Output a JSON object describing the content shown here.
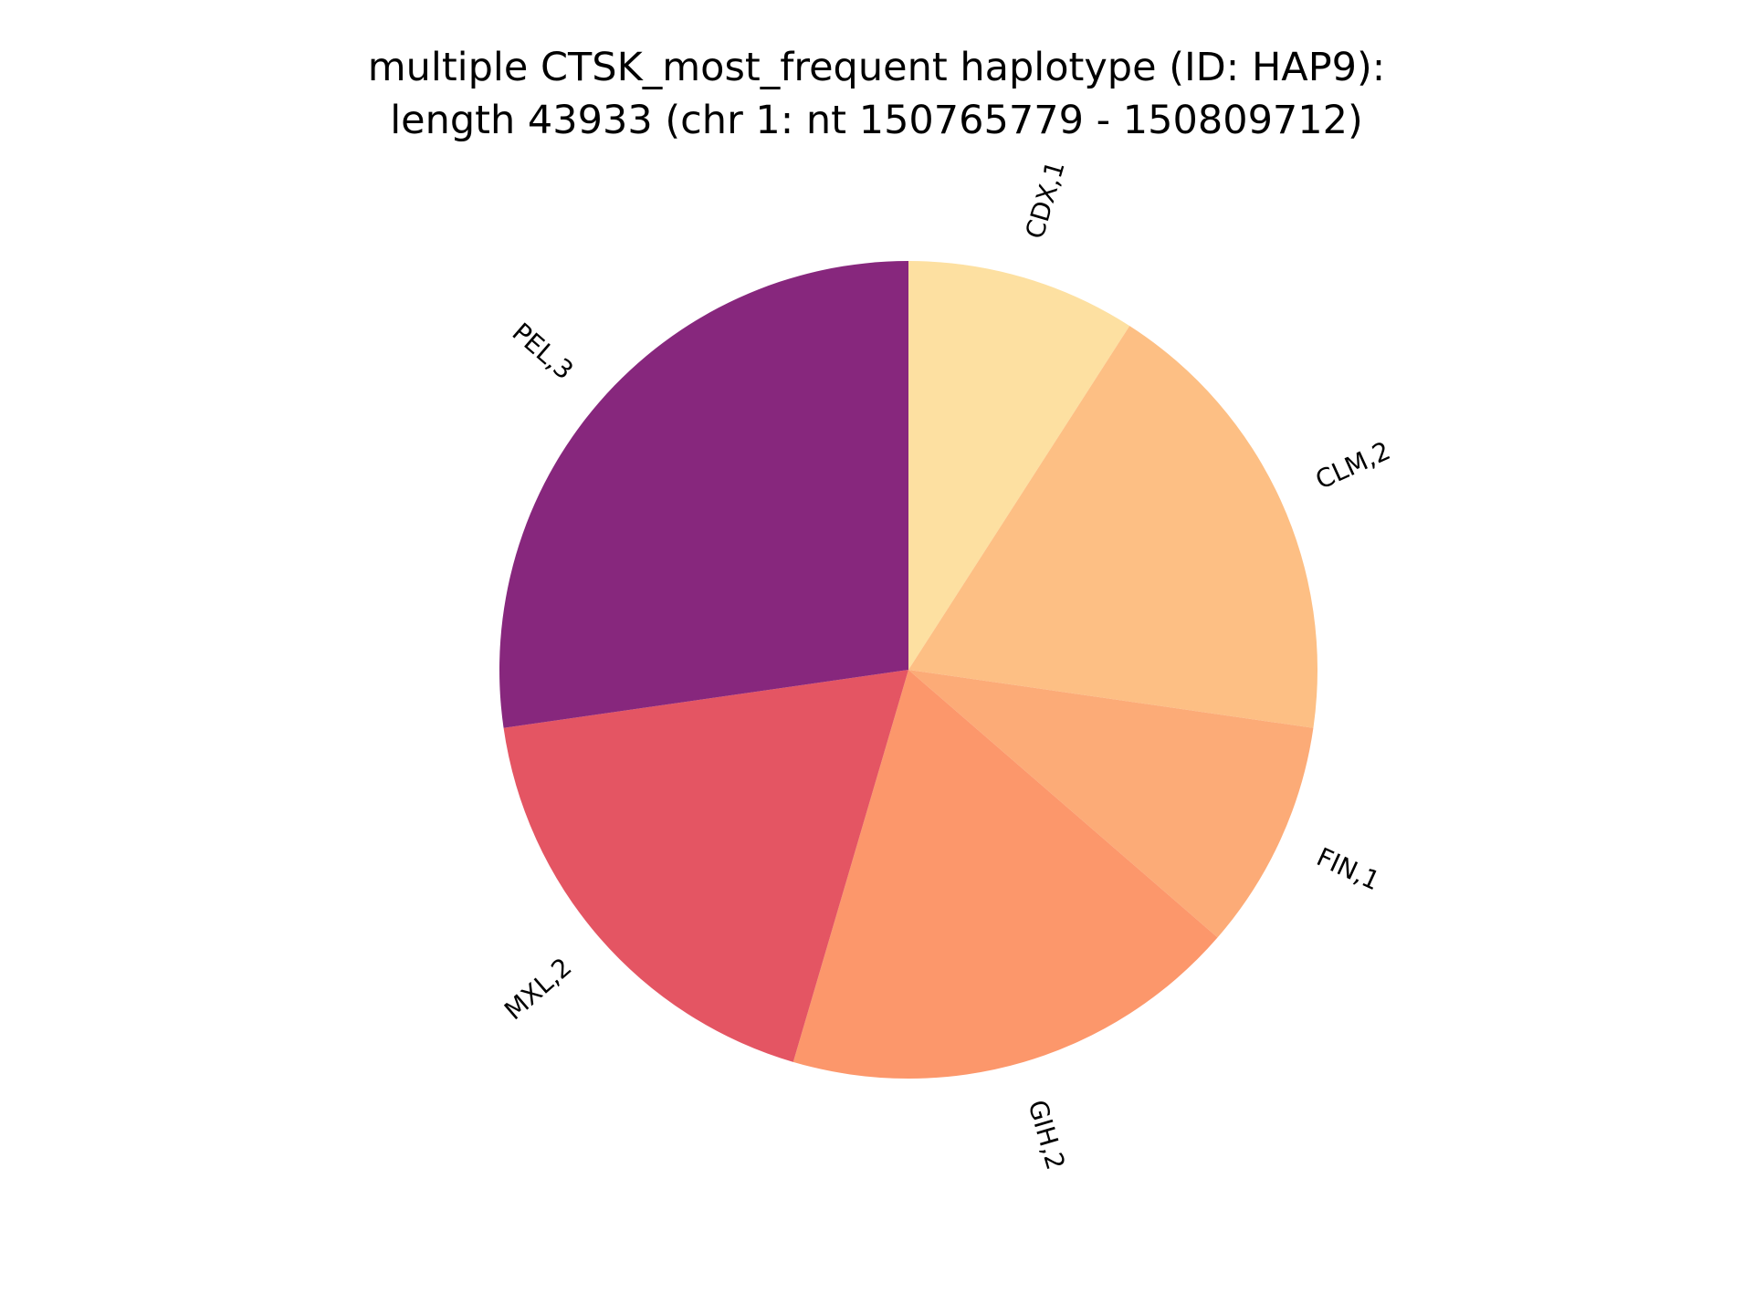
{
  "chart_data": {
    "type": "pie",
    "title_lines": [
      "multiple CTSK_most_frequent haplotype (ID: HAP9):",
      "length 43933 (chr 1: nt 150765779 - 150809712)"
    ],
    "start_angle_deg": 90,
    "direction": "clockwise",
    "slices": [
      {
        "label": "CDX,1",
        "value": 1,
        "color": "#fde0a1"
      },
      {
        "label": "CLM,2",
        "value": 2,
        "color": "#fdbf84"
      },
      {
        "label": "FIN,1",
        "value": 1,
        "color": "#fcab77"
      },
      {
        "label": "GIH,2",
        "value": 2,
        "color": "#fc976b"
      },
      {
        "label": "MXL,2",
        "value": 2,
        "color": "#e45563"
      },
      {
        "label": "PEL,3",
        "value": 3,
        "color": "#87277d"
      }
    ]
  }
}
